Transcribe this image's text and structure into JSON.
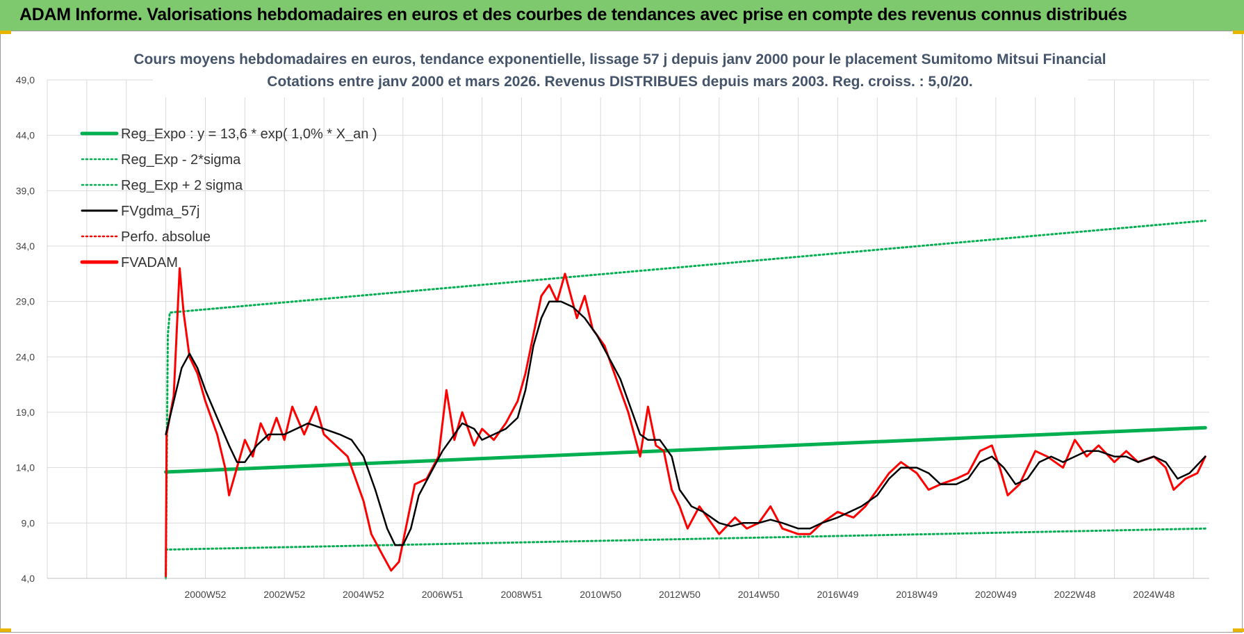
{
  "banner": {
    "title": "ADAM Informe. Valorisations hebdomadaires en euros et des courbes de tendances avec prise en compte des revenus connus distribués"
  },
  "colors": {
    "banner_bg": "#7ec86e",
    "regression": "#00b050",
    "gdma": "#000000",
    "adam": "#ff0000",
    "title_text": "#44546a",
    "grid": "#d9d9d9"
  },
  "chart_data": {
    "type": "line",
    "title": [
      "Cours moyens hebdomadaires en euros, tendance exponentielle, lissage 57 j depuis janv 2000 pour le placement Sumitomo Mitsui Financial",
      "Cotations entre janv 2000 et mars 2026. Revenus DISTRIBUES depuis mars 2003. Reg. croiss. : 5,0/20."
    ],
    "xlabel": "",
    "ylabel": "",
    "ylim": [
      4,
      49
    ],
    "xlim": [
      1997.0,
      2026.4
    ],
    "grid": true,
    "legend_position": "top-left",
    "y_ticks": [
      "4,0",
      "9,0",
      "14,0",
      "19,0",
      "24,0",
      "29,0",
      "34,0",
      "39,0",
      "44,0",
      "49,0"
    ],
    "x_ticks": [
      {
        "label": "2000W52",
        "x": 2001.0
      },
      {
        "label": "2002W52",
        "x": 2003.0
      },
      {
        "label": "2004W52",
        "x": 2005.0
      },
      {
        "label": "2006W51",
        "x": 2007.0
      },
      {
        "label": "2008W51",
        "x": 2009.0
      },
      {
        "label": "2010W50",
        "x": 2011.0
      },
      {
        "label": "2012W50",
        "x": 2013.0
      },
      {
        "label": "2014W50",
        "x": 2015.0
      },
      {
        "label": "2016W49",
        "x": 2017.0
      },
      {
        "label": "2018W49",
        "x": 2019.0
      },
      {
        "label": "2020W49",
        "x": 2021.0
      },
      {
        "label": "2022W48",
        "x": 2023.0
      },
      {
        "label": "2024W48",
        "x": 2025.0
      }
    ],
    "series": [
      {
        "name": "Reg_Expo : y = 13,6 * exp( 1,0% *  X_an )",
        "style": "solid-thick",
        "color": "#00b050",
        "points": [
          [
            2000.0,
            13.6
          ],
          [
            2026.3,
            17.6
          ]
        ]
      },
      {
        "name": "Reg_Exp - 2*sigma",
        "style": "dotted",
        "color": "#00b050",
        "points": [
          [
            2000.0,
            6.6
          ],
          [
            2026.3,
            8.5
          ]
        ]
      },
      {
        "name": "Reg_Exp + 2 sigma",
        "style": "dotted",
        "color": "#00b050",
        "points": [
          [
            2000.0,
            4.0
          ],
          [
            2000.05,
            26.0
          ],
          [
            2000.1,
            28.0
          ],
          [
            2026.3,
            36.3
          ]
        ]
      },
      {
        "name": "FVgdma_57j",
        "style": "solid",
        "color": "#000000",
        "points": [
          [
            2000.0,
            17.0
          ],
          [
            2000.2,
            20.0
          ],
          [
            2000.4,
            23.0
          ],
          [
            2000.6,
            24.3
          ],
          [
            2000.8,
            23.0
          ],
          [
            2001.0,
            21.0
          ],
          [
            2001.3,
            18.5
          ],
          [
            2001.6,
            16.0
          ],
          [
            2001.8,
            14.5
          ],
          [
            2002.0,
            14.5
          ],
          [
            2002.3,
            16.0
          ],
          [
            2002.6,
            17.0
          ],
          [
            2003.0,
            17.0
          ],
          [
            2003.3,
            17.5
          ],
          [
            2003.6,
            18.0
          ],
          [
            2004.0,
            17.5
          ],
          [
            2004.4,
            17.0
          ],
          [
            2004.7,
            16.5
          ],
          [
            2005.0,
            15.0
          ],
          [
            2005.3,
            12.0
          ],
          [
            2005.6,
            8.5
          ],
          [
            2005.8,
            7.0
          ],
          [
            2006.0,
            7.0
          ],
          [
            2006.2,
            8.5
          ],
          [
            2006.4,
            11.5
          ],
          [
            2006.7,
            13.5
          ],
          [
            2007.0,
            15.5
          ],
          [
            2007.3,
            17.0
          ],
          [
            2007.5,
            18.0
          ],
          [
            2007.8,
            17.5
          ],
          [
            2008.0,
            16.5
          ],
          [
            2008.3,
            17.0
          ],
          [
            2008.6,
            17.5
          ],
          [
            2008.9,
            18.5
          ],
          [
            2009.1,
            21.0
          ],
          [
            2009.3,
            25.0
          ],
          [
            2009.5,
            27.5
          ],
          [
            2009.7,
            29.0
          ],
          [
            2010.0,
            29.0
          ],
          [
            2010.3,
            28.5
          ],
          [
            2010.6,
            27.5
          ],
          [
            2010.9,
            26.0
          ],
          [
            2011.2,
            24.0
          ],
          [
            2011.5,
            22.0
          ],
          [
            2011.8,
            19.0
          ],
          [
            2012.0,
            17.0
          ],
          [
            2012.2,
            16.5
          ],
          [
            2012.5,
            16.5
          ],
          [
            2012.8,
            15.0
          ],
          [
            2013.0,
            12.0
          ],
          [
            2013.3,
            10.5
          ],
          [
            2013.6,
            10.0
          ],
          [
            2014.0,
            9.0
          ],
          [
            2014.3,
            8.7
          ],
          [
            2014.6,
            9.0
          ],
          [
            2015.0,
            9.0
          ],
          [
            2015.3,
            9.3
          ],
          [
            2015.6,
            9.0
          ],
          [
            2016.0,
            8.5
          ],
          [
            2016.3,
            8.5
          ],
          [
            2016.6,
            9.0
          ],
          [
            2017.0,
            9.5
          ],
          [
            2017.3,
            10.0
          ],
          [
            2017.6,
            10.5
          ],
          [
            2018.0,
            11.5
          ],
          [
            2018.3,
            13.0
          ],
          [
            2018.6,
            14.0
          ],
          [
            2019.0,
            14.0
          ],
          [
            2019.3,
            13.5
          ],
          [
            2019.6,
            12.5
          ],
          [
            2020.0,
            12.5
          ],
          [
            2020.3,
            13.0
          ],
          [
            2020.6,
            14.5
          ],
          [
            2020.9,
            15.0
          ],
          [
            2021.2,
            14.0
          ],
          [
            2021.5,
            12.5
          ],
          [
            2021.8,
            13.0
          ],
          [
            2022.1,
            14.5
          ],
          [
            2022.4,
            15.0
          ],
          [
            2022.7,
            14.5
          ],
          [
            2023.0,
            15.0
          ],
          [
            2023.3,
            15.5
          ],
          [
            2023.6,
            15.5
          ],
          [
            2024.0,
            15.0
          ],
          [
            2024.3,
            15.0
          ],
          [
            2024.6,
            14.5
          ],
          [
            2025.0,
            15.0
          ],
          [
            2025.3,
            14.5
          ],
          [
            2025.6,
            13.0
          ],
          [
            2025.9,
            13.5
          ],
          [
            2026.3,
            15.0
          ]
        ]
      },
      {
        "name": "Perfo. absolue",
        "style": "dotted",
        "color": "#ff0000",
        "points": []
      },
      {
        "name": "FVADAM",
        "style": "solid-thick",
        "color": "#ff0000",
        "points": [
          [
            2000.0,
            4.2
          ],
          [
            2000.02,
            17.0
          ],
          [
            2000.2,
            20.5
          ],
          [
            2000.35,
            32.0
          ],
          [
            2000.45,
            28.0
          ],
          [
            2000.6,
            24.0
          ],
          [
            2000.8,
            22.5
          ],
          [
            2001.0,
            20.0
          ],
          [
            2001.3,
            17.0
          ],
          [
            2001.5,
            14.0
          ],
          [
            2001.6,
            11.5
          ],
          [
            2001.8,
            14.0
          ],
          [
            2002.0,
            16.5
          ],
          [
            2002.2,
            15.0
          ],
          [
            2002.4,
            18.0
          ],
          [
            2002.6,
            16.5
          ],
          [
            2002.8,
            18.5
          ],
          [
            2003.0,
            16.5
          ],
          [
            2003.2,
            19.5
          ],
          [
            2003.5,
            17.0
          ],
          [
            2003.8,
            19.5
          ],
          [
            2004.0,
            17.0
          ],
          [
            2004.3,
            16.0
          ],
          [
            2004.6,
            15.0
          ],
          [
            2004.8,
            13.0
          ],
          [
            2005.0,
            11.0
          ],
          [
            2005.2,
            8.0
          ],
          [
            2005.5,
            6.0
          ],
          [
            2005.7,
            4.7
          ],
          [
            2005.9,
            5.5
          ],
          [
            2006.1,
            9.0
          ],
          [
            2006.3,
            12.5
          ],
          [
            2006.6,
            13.0
          ],
          [
            2006.9,
            15.0
          ],
          [
            2007.1,
            21.0
          ],
          [
            2007.3,
            16.5
          ],
          [
            2007.5,
            19.0
          ],
          [
            2007.8,
            16.0
          ],
          [
            2008.0,
            17.5
          ],
          [
            2008.3,
            16.5
          ],
          [
            2008.6,
            18.0
          ],
          [
            2008.9,
            20.0
          ],
          [
            2009.1,
            22.5
          ],
          [
            2009.3,
            26.0
          ],
          [
            2009.5,
            29.5
          ],
          [
            2009.7,
            30.5
          ],
          [
            2009.9,
            29.0
          ],
          [
            2010.1,
            31.5
          ],
          [
            2010.4,
            27.5
          ],
          [
            2010.6,
            29.5
          ],
          [
            2010.8,
            26.5
          ],
          [
            2011.1,
            25.0
          ],
          [
            2011.4,
            22.0
          ],
          [
            2011.7,
            19.0
          ],
          [
            2012.0,
            15.0
          ],
          [
            2012.2,
            19.5
          ],
          [
            2012.4,
            16.0
          ],
          [
            2012.6,
            15.5
          ],
          [
            2012.8,
            12.0
          ],
          [
            2013.0,
            10.5
          ],
          [
            2013.2,
            8.5
          ],
          [
            2013.5,
            10.5
          ],
          [
            2013.8,
            9.0
          ],
          [
            2014.0,
            8.0
          ],
          [
            2014.4,
            9.5
          ],
          [
            2014.7,
            8.5
          ],
          [
            2015.0,
            9.0
          ],
          [
            2015.3,
            10.5
          ],
          [
            2015.6,
            8.5
          ],
          [
            2016.0,
            8.0
          ],
          [
            2016.3,
            8.0
          ],
          [
            2016.6,
            9.0
          ],
          [
            2017.0,
            10.0
          ],
          [
            2017.4,
            9.5
          ],
          [
            2017.7,
            10.5
          ],
          [
            2018.0,
            12.0
          ],
          [
            2018.3,
            13.5
          ],
          [
            2018.6,
            14.5
          ],
          [
            2019.0,
            13.5
          ],
          [
            2019.3,
            12.0
          ],
          [
            2019.6,
            12.5
          ],
          [
            2020.0,
            13.0
          ],
          [
            2020.3,
            13.5
          ],
          [
            2020.6,
            15.5
          ],
          [
            2020.9,
            16.0
          ],
          [
            2021.1,
            14.0
          ],
          [
            2021.3,
            11.5
          ],
          [
            2021.6,
            12.5
          ],
          [
            2022.0,
            15.5
          ],
          [
            2022.3,
            15.0
          ],
          [
            2022.7,
            14.0
          ],
          [
            2023.0,
            16.5
          ],
          [
            2023.3,
            15.0
          ],
          [
            2023.6,
            16.0
          ],
          [
            2024.0,
            14.5
          ],
          [
            2024.3,
            15.5
          ],
          [
            2024.6,
            14.5
          ],
          [
            2025.0,
            15.0
          ],
          [
            2025.3,
            14.0
          ],
          [
            2025.5,
            12.0
          ],
          [
            2025.8,
            13.0
          ],
          [
            2026.1,
            13.5
          ],
          [
            2026.3,
            15.0
          ]
        ]
      }
    ]
  }
}
